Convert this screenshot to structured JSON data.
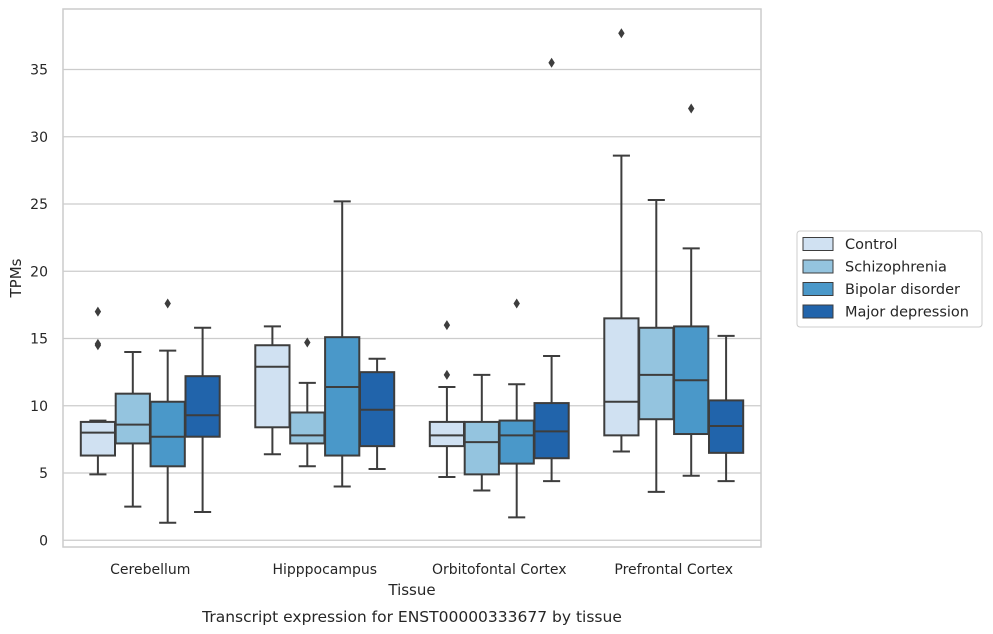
{
  "chart_data": {
    "type": "box",
    "title": "",
    "caption": "Transcript expression for ENST00000333677 by tissue",
    "xlabel": "Tissue",
    "ylabel": "TPMs",
    "ylim": [
      -0.5,
      39.5
    ],
    "yticks": [
      0,
      5,
      10,
      15,
      20,
      25,
      30,
      35
    ],
    "grid": "horizontal",
    "legend_position": "right",
    "categories": [
      "Cerebellum",
      "Hipppocampus",
      "Orbitofontal Cortex",
      "Prefrontal Cortex"
    ],
    "series": [
      {
        "name": "Control",
        "color": "#d0e1f2",
        "boxes": [
          {
            "whislo": 4.9,
            "q1": 6.3,
            "med": 8.0,
            "q3": 8.8,
            "whishi": 8.9,
            "fliers": [
              14.5,
              14.6,
              17.0
            ]
          },
          {
            "whislo": 6.4,
            "q1": 8.4,
            "med": 12.9,
            "q3": 14.5,
            "whishi": 15.9,
            "fliers": []
          },
          {
            "whislo": 4.7,
            "q1": 7.0,
            "med": 7.8,
            "q3": 8.8,
            "whishi": 11.4,
            "fliers": [
              12.3,
              16.0
            ]
          },
          {
            "whislo": 6.6,
            "q1": 7.8,
            "med": 10.3,
            "q3": 16.5,
            "whishi": 28.6,
            "fliers": [
              37.7
            ]
          }
        ]
      },
      {
        "name": "Schizophrenia",
        "color": "#94c4df",
        "boxes": [
          {
            "whislo": 2.5,
            "q1": 7.2,
            "med": 8.6,
            "q3": 10.9,
            "whishi": 14.0,
            "fliers": []
          },
          {
            "whislo": 5.5,
            "q1": 7.2,
            "med": 7.8,
            "q3": 9.5,
            "whishi": 11.7,
            "fliers": [
              14.7
            ]
          },
          {
            "whislo": 3.7,
            "q1": 4.9,
            "med": 7.3,
            "q3": 8.8,
            "whishi": 12.3,
            "fliers": []
          },
          {
            "whislo": 3.6,
            "q1": 9.0,
            "med": 12.3,
            "q3": 15.8,
            "whishi": 25.3,
            "fliers": []
          }
        ]
      },
      {
        "name": "Bipolar disorder",
        "color": "#4a98c9",
        "boxes": [
          {
            "whislo": 1.3,
            "q1": 5.5,
            "med": 7.7,
            "q3": 10.3,
            "whishi": 14.1,
            "fliers": [
              17.6
            ]
          },
          {
            "whislo": 4.0,
            "q1": 6.3,
            "med": 11.4,
            "q3": 15.1,
            "whishi": 25.2,
            "fliers": []
          },
          {
            "whislo": 1.7,
            "q1": 5.7,
            "med": 7.8,
            "q3": 8.9,
            "whishi": 11.6,
            "fliers": [
              17.6
            ]
          },
          {
            "whislo": 4.8,
            "q1": 7.9,
            "med": 11.9,
            "q3": 15.9,
            "whishi": 21.7,
            "fliers": [
              32.1
            ]
          }
        ]
      },
      {
        "name": "Major depression",
        "color": "#2164ab",
        "boxes": [
          {
            "whislo": 2.1,
            "q1": 7.7,
            "med": 9.3,
            "q3": 12.2,
            "whishi": 15.8,
            "fliers": []
          },
          {
            "whislo": 5.3,
            "q1": 7.0,
            "med": 9.7,
            "q3": 12.5,
            "whishi": 13.5,
            "fliers": []
          },
          {
            "whislo": 4.4,
            "q1": 6.1,
            "med": 8.1,
            "q3": 10.2,
            "whishi": 13.7,
            "fliers": [
              35.5
            ]
          },
          {
            "whislo": 4.4,
            "q1": 6.5,
            "med": 8.5,
            "q3": 10.4,
            "whishi": 15.2,
            "fliers": []
          }
        ]
      }
    ]
  }
}
